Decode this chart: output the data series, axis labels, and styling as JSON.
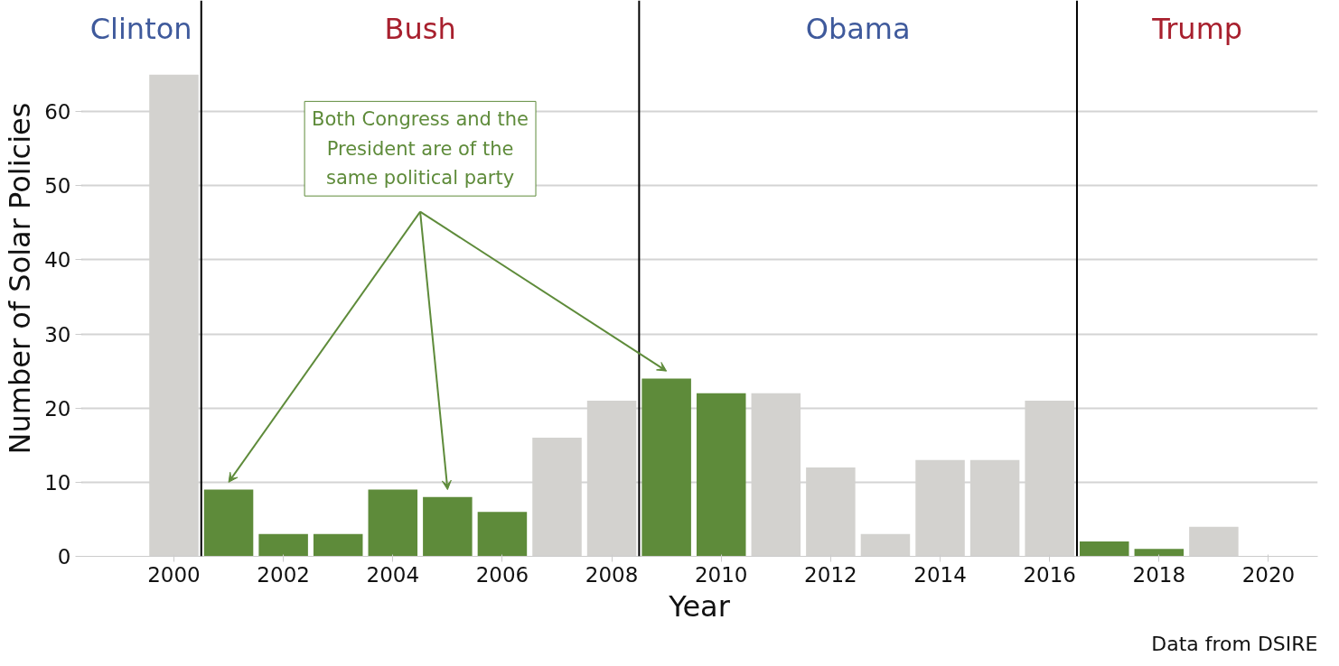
{
  "chart_data": {
    "type": "bar",
    "xlabel": "Year",
    "ylabel": "Number of Solar Policies",
    "x": [
      2000,
      2001,
      2002,
      2003,
      2004,
      2005,
      2006,
      2007,
      2008,
      2009,
      2010,
      2011,
      2012,
      2013,
      2014,
      2015,
      2016,
      2017,
      2018,
      2019
    ],
    "values": [
      65,
      9,
      3,
      3,
      9,
      8,
      6,
      16,
      21,
      24,
      22,
      22,
      12,
      3,
      13,
      13,
      21,
      2,
      1,
      4
    ],
    "colors": [
      "#d3d2cf",
      "#5e8b3a",
      "#5e8b3a",
      "#5e8b3a",
      "#5e8b3a",
      "#5e8b3a",
      "#5e8b3a",
      "#d3d2cf",
      "#d3d2cf",
      "#5e8b3a",
      "#5e8b3a",
      "#d3d2cf",
      "#d3d2cf",
      "#d3d2cf",
      "#d3d2cf",
      "#d3d2cf",
      "#d3d2cf",
      "#5e8b3a",
      "#5e8b3a",
      "#d3d2cf"
    ],
    "xlim": [
      1998.3,
      2020.9
    ],
    "ylim": [
      0,
      75
    ],
    "xticks": [
      2000,
      2002,
      2004,
      2006,
      2008,
      2010,
      2012,
      2014,
      2016,
      2018,
      2020
    ],
    "yticks": [
      0,
      10,
      20,
      30,
      40,
      50,
      60
    ],
    "grid": "y",
    "ref_lines": [
      {
        "axis": "x",
        "value": 2000.5,
        "color": "#000000"
      },
      {
        "axis": "x",
        "value": 2008.5,
        "color": "#000000"
      },
      {
        "axis": "x",
        "value": 2016.5,
        "color": "#000000"
      }
    ],
    "annotations": [
      "Clinton",
      "Bush",
      "Obama",
      "Trump",
      "Both Congress and the President are of the same political party",
      "Data from DSIRE"
    ]
  }
}
